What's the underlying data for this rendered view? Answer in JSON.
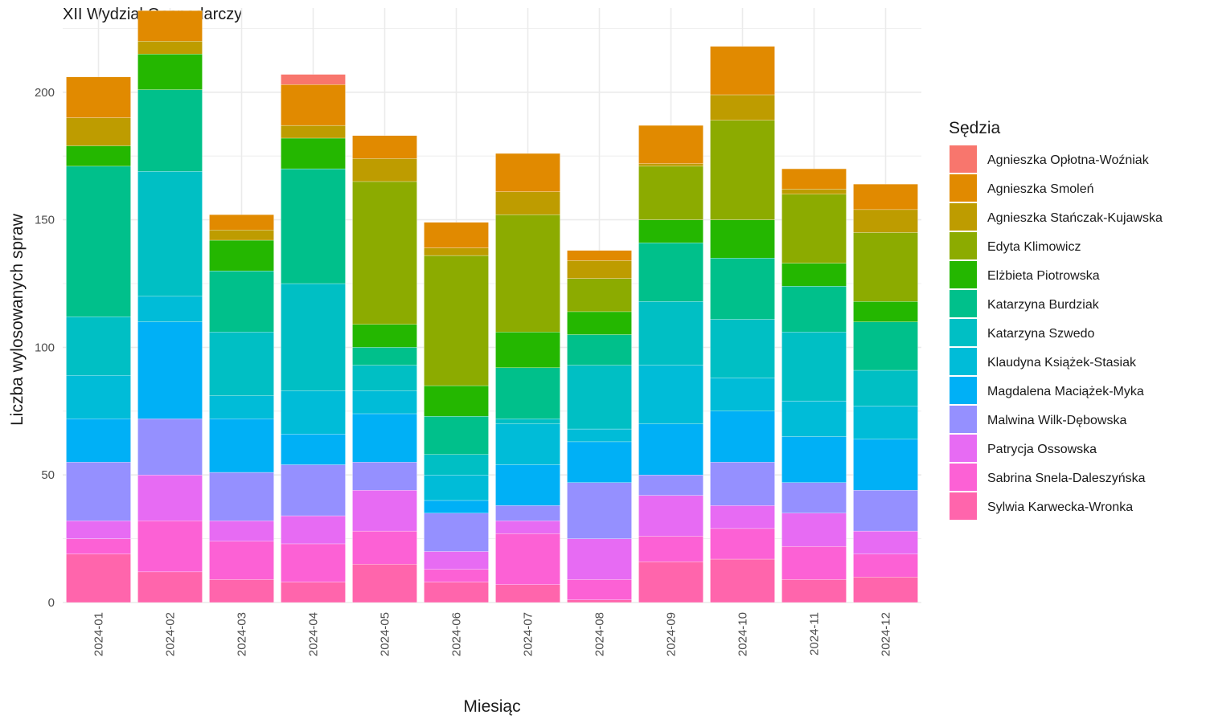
{
  "chart_data": {
    "type": "bar",
    "stacked": true,
    "title": "XII Wydział Gospodarczy",
    "xlabel": "Miesiąc",
    "ylabel": "Liczba wylosowanych spraw",
    "ylim": [
      0,
      233
    ],
    "yticks": [
      0,
      50,
      100,
      150,
      200
    ],
    "grid": true,
    "legend_title": "Sędzia",
    "legend_position": "right",
    "categories": [
      "2024-01",
      "2024-02",
      "2024-03",
      "2024-04",
      "2024-05",
      "2024-06",
      "2024-07",
      "2024-08",
      "2024-09",
      "2024-10",
      "2024-11",
      "2024-12"
    ],
    "series": [
      {
        "name": "Sylwia Karwecka-Wronka",
        "color": "#FF65AC",
        "values": [
          19,
          12,
          9,
          8,
          15,
          8,
          7,
          1,
          16,
          17,
          9,
          10
        ]
      },
      {
        "name": "Sabrina Snela-Daleszyńska",
        "color": "#FC61D5",
        "values": [
          6,
          20,
          15,
          15,
          13,
          5,
          20,
          8,
          10,
          12,
          13,
          9
        ]
      },
      {
        "name": "Patrycja Ossowska",
        "color": "#E76BF3",
        "values": [
          7,
          18,
          8,
          11,
          16,
          7,
          5,
          16,
          16,
          9,
          13,
          9
        ]
      },
      {
        "name": "Malwina Wilk-Dębowska",
        "color": "#9590FF",
        "values": [
          23,
          22,
          19,
          20,
          11,
          15,
          6,
          22,
          8,
          17,
          12,
          16
        ]
      },
      {
        "name": "Magdalena Maciążek-Myka",
        "color": "#00B0F6",
        "values": [
          17,
          38,
          21,
          12,
          19,
          5,
          16,
          16,
          20,
          20,
          18,
          20
        ]
      },
      {
        "name": "Klaudyna Książek-Stasiak",
        "color": "#00BCD8",
        "values": [
          17,
          10,
          9,
          17,
          9,
          10,
          16,
          5,
          23,
          13,
          14,
          13
        ]
      },
      {
        "name": "Katarzyna Szwedo",
        "color": "#00BFC4",
        "values": [
          23,
          49,
          25,
          42,
          10,
          8,
          2,
          25,
          25,
          23,
          27,
          14
        ]
      },
      {
        "name": "Katarzyna Burdziak",
        "color": "#00C08B",
        "values": [
          59,
          32,
          24,
          45,
          7,
          15,
          20,
          12,
          23,
          24,
          18,
          19
        ]
      },
      {
        "name": "Elżbieta Piotrowska",
        "color": "#24B700",
        "values": [
          8,
          14,
          12,
          12,
          9,
          12,
          14,
          9,
          9,
          15,
          9,
          8
        ]
      },
      {
        "name": "Edyta Klimowicz",
        "color": "#8CAB00",
        "values": [
          0,
          0,
          0,
          0,
          56,
          51,
          46,
          13,
          21,
          39,
          27,
          27
        ]
      },
      {
        "name": "Agnieszka Stańczak-Kujawska",
        "color": "#BE9C00",
        "values": [
          11,
          5,
          4,
          5,
          9,
          3,
          9,
          7,
          1,
          10,
          2,
          9
        ]
      },
      {
        "name": "Agnieszka Smoleń",
        "color": "#E18A00",
        "values": [
          16,
          12,
          6,
          16,
          9,
          10,
          15,
          4,
          15,
          19,
          8,
          10
        ]
      },
      {
        "name": "Agnieszka Opłotna-Woźniak",
        "color": "#F8766D",
        "values": [
          0,
          0,
          0,
          4,
          0,
          0,
          0,
          0,
          0,
          0,
          0,
          0
        ]
      }
    ],
    "legend_order": [
      "Agnieszka Opłotna-Woźniak",
      "Agnieszka Smoleń",
      "Agnieszka Stańczak-Kujawska",
      "Edyta Klimowicz",
      "Elżbieta Piotrowska",
      "Katarzyna Burdziak",
      "Katarzyna Szwedo",
      "Klaudyna Książek-Stasiak",
      "Magdalena Maciążek-Myka",
      "Malwina Wilk-Dębowska",
      "Patrycja Ossowska",
      "Sabrina Snela-Daleszyńska",
      "Sylwia Karwecka-Wronka"
    ]
  }
}
